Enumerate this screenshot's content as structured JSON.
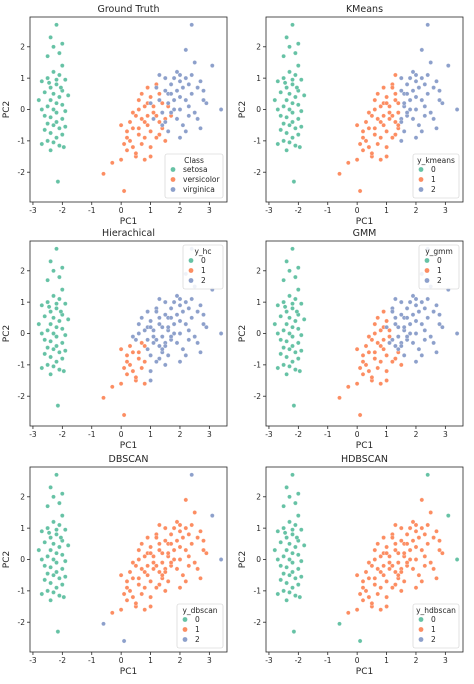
{
  "palette": {
    "0": "#66c2a5",
    "1": "#fc8d62",
    "2": "#8da0cb"
  },
  "chart_data": [
    {
      "type": "scatter",
      "title": "Ground Truth",
      "xlabel": "PC1",
      "ylabel": "PC2",
      "xlim": [
        -3.1,
        3.6
      ],
      "ylim": [
        -2.95,
        2.95
      ],
      "xticks": [
        "-3",
        "-2",
        "-1",
        "0",
        "1",
        "2",
        "3"
      ],
      "yticks": [
        "-2",
        "-1",
        "0",
        "1",
        "2"
      ],
      "legend": {
        "title": "Class",
        "position": "lower-right",
        "entries": [
          "setosa",
          "versicolor",
          "virginica"
        ]
      },
      "mode": "truth",
      "series": [
        {
          "name": "setosa"
        },
        {
          "name": "versicolor"
        },
        {
          "name": "virginica"
        }
      ]
    },
    {
      "type": "scatter",
      "title": "KMeans",
      "xlabel": "PC1",
      "ylabel": "PC2",
      "xlim": [
        -3.1,
        3.6
      ],
      "ylim": [
        -2.95,
        2.95
      ],
      "xticks": [
        "-3",
        "-2",
        "-1",
        "0",
        "1",
        "2",
        "3"
      ],
      "yticks": [
        "-2",
        "-1",
        "0",
        "1",
        "2"
      ],
      "legend": {
        "title": "y_kmeans",
        "position": "lower-right",
        "entries": [
          "0",
          "1",
          "2"
        ]
      },
      "mode": "kmeans",
      "series": [
        {
          "name": "0"
        },
        {
          "name": "1"
        },
        {
          "name": "2"
        }
      ]
    },
    {
      "type": "scatter",
      "title": "Hierachical",
      "xlabel": "PC1",
      "ylabel": "PC2",
      "xlim": [
        -3.1,
        3.6
      ],
      "ylim": [
        -2.95,
        2.95
      ],
      "xticks": [
        "-3",
        "-2",
        "-1",
        "0",
        "1",
        "2",
        "3"
      ],
      "yticks": [
        "-2",
        "-1",
        "0",
        "1",
        "2"
      ],
      "legend": {
        "title": "y_hc",
        "position": "upper-right",
        "entries": [
          "0",
          "1",
          "2"
        ]
      },
      "mode": "hier",
      "series": [
        {
          "name": "0"
        },
        {
          "name": "1"
        },
        {
          "name": "2"
        }
      ]
    },
    {
      "type": "scatter",
      "title": "GMM",
      "xlabel": "PC1",
      "ylabel": "PC2",
      "xlim": [
        -3.1,
        3.6
      ],
      "ylim": [
        -2.95,
        2.95
      ],
      "xticks": [
        "-3",
        "-2",
        "-1",
        "0",
        "1",
        "2",
        "3"
      ],
      "yticks": [
        "-2",
        "-1",
        "0",
        "1",
        "2"
      ],
      "legend": {
        "title": "y_gmm",
        "position": "upper-right",
        "entries": [
          "0",
          "1",
          "2"
        ]
      },
      "mode": "gmm",
      "series": [
        {
          "name": "0"
        },
        {
          "name": "1"
        },
        {
          "name": "2"
        }
      ]
    },
    {
      "type": "scatter",
      "title": "DBSCAN",
      "xlabel": "PC1",
      "ylabel": "PC2",
      "xlim": [
        -3.1,
        3.6
      ],
      "ylim": [
        -2.95,
        2.95
      ],
      "xticks": [
        "-3",
        "-2",
        "-1",
        "0",
        "1",
        "2",
        "3"
      ],
      "yticks": [
        "-2",
        "-1",
        "0",
        "1",
        "2"
      ],
      "legend": {
        "title": "y_dbscan",
        "position": "lower-right",
        "entries": [
          "0",
          "1",
          "2"
        ]
      },
      "mode": "dbscan",
      "series": [
        {
          "name": "0"
        },
        {
          "name": "1"
        },
        {
          "name": "2"
        }
      ]
    },
    {
      "type": "scatter",
      "title": "HDBSCAN",
      "xlabel": "PC1",
      "ylabel": "PC2",
      "xlim": [
        -3.1,
        3.6
      ],
      "ylim": [
        -2.95,
        2.95
      ],
      "xticks": [
        "-3",
        "-2",
        "-1",
        "0",
        "1",
        "2",
        "3"
      ],
      "yticks": [
        "-2",
        "-1",
        "0",
        "1",
        "2"
      ],
      "legend": {
        "title": "y_hdbscan",
        "position": "lower-right",
        "entries": [
          "0",
          "1",
          "2"
        ]
      },
      "mode": "hdbscan",
      "series": [
        {
          "name": "0"
        },
        {
          "name": "1"
        },
        {
          "name": "2"
        }
      ]
    }
  ],
  "points": {
    "setosa": [
      [
        -2.2,
        2.7
      ],
      [
        -2.4,
        2.3
      ],
      [
        -2.3,
        2.0
      ],
      [
        -2.0,
        2.1
      ],
      [
        -2.1,
        1.8
      ],
      [
        -2.5,
        1.7
      ],
      [
        -2.0,
        1.4
      ],
      [
        -2.3,
        1.2
      ],
      [
        -2.1,
        1.1
      ],
      [
        -2.5,
        1.0
      ],
      [
        -2.7,
        0.9
      ],
      [
        -1.9,
        0.95
      ],
      [
        -2.2,
        0.8
      ],
      [
        -2.4,
        0.7
      ],
      [
        -2.0,
        0.6
      ],
      [
        -2.6,
        0.55
      ],
      [
        -2.3,
        0.5
      ],
      [
        -1.8,
        0.45
      ],
      [
        -2.1,
        0.4
      ],
      [
        -2.8,
        0.3
      ],
      [
        -2.4,
        0.3
      ],
      [
        -2.2,
        0.2
      ],
      [
        -2.0,
        0.15
      ],
      [
        -2.5,
        0.1
      ],
      [
        -2.7,
        0.0
      ],
      [
        -2.3,
        0.0
      ],
      [
        -1.9,
        -0.05
      ],
      [
        -2.2,
        -0.1
      ],
      [
        -2.6,
        -0.2
      ],
      [
        -2.4,
        -0.25
      ],
      [
        -2.0,
        -0.3
      ],
      [
        -2.2,
        -0.4
      ],
      [
        -2.5,
        -0.45
      ],
      [
        -2.3,
        -0.5
      ],
      [
        -1.9,
        -0.55
      ],
      [
        -2.1,
        -0.6
      ],
      [
        -2.6,
        -0.65
      ],
      [
        -2.4,
        -0.75
      ],
      [
        -2.0,
        -0.8
      ],
      [
        -2.2,
        -0.9
      ],
      [
        -2.5,
        -1.0
      ],
      [
        -2.3,
        -1.05
      ],
      [
        -2.7,
        -1.1
      ],
      [
        -2.1,
        -1.15
      ],
      [
        -1.95,
        -1.2
      ],
      [
        -2.4,
        -1.3
      ],
      [
        -2.2,
        0.95
      ],
      [
        -2.45,
        0.85
      ],
      [
        -2.05,
        0.7
      ],
      [
        -2.15,
        -2.3
      ]
    ],
    "versicolor": [
      [
        0.1,
        -2.6
      ],
      [
        -0.6,
        -2.05
      ],
      [
        -0.3,
        -1.7
      ],
      [
        0.0,
        -1.6
      ],
      [
        0.2,
        -1.3
      ],
      [
        0.5,
        -1.5
      ],
      [
        0.3,
        -1.0
      ],
      [
        0.8,
        -1.6
      ],
      [
        1.0,
        -1.2
      ],
      [
        0.6,
        -0.8
      ],
      [
        0.4,
        -0.6
      ],
      [
        0.9,
        -0.5
      ],
      [
        1.2,
        -0.9
      ],
      [
        0.7,
        -0.3
      ],
      [
        1.5,
        -1.0
      ],
      [
        0.0,
        -0.5
      ],
      [
        0.5,
        -0.2
      ],
      [
        1.3,
        -0.4
      ],
      [
        0.2,
        -0.9
      ],
      [
        1.1,
        -0.1
      ],
      [
        0.8,
        0.1
      ],
      [
        1.4,
        0.2
      ],
      [
        0.6,
        0.3
      ],
      [
        1.0,
        0.4
      ],
      [
        1.3,
        0.5
      ],
      [
        1.6,
        0.1
      ],
      [
        0.9,
        0.7
      ],
      [
        1.2,
        0.8
      ],
      [
        0.4,
        -1.2
      ],
      [
        0.1,
        -1.1
      ],
      [
        0.7,
        -1.1
      ],
      [
        1.0,
        -0.7
      ],
      [
        0.3,
        -0.4
      ],
      [
        0.6,
        -0.6
      ],
      [
        1.5,
        -0.3
      ],
      [
        0.8,
        -0.9
      ],
      [
        1.1,
        0.1
      ],
      [
        0.5,
        -1.4
      ],
      [
        0.9,
        -0.2
      ],
      [
        1.7,
        -0.2
      ],
      [
        0.2,
        -0.7
      ],
      [
        1.4,
        -0.6
      ],
      [
        0.7,
        0.5
      ],
      [
        1.2,
        -0.2
      ],
      [
        0.9,
        0.2
      ],
      [
        1.0,
        -1.5
      ],
      [
        0.4,
        -0.1
      ],
      [
        1.3,
        -0.8
      ],
      [
        0.6,
        0.0
      ],
      [
        0.8,
        -0.4
      ]
    ],
    "virginica": [
      [
        2.4,
        2.7
      ],
      [
        2.2,
        1.9
      ],
      [
        2.5,
        1.5
      ],
      [
        3.1,
        1.4
      ],
      [
        2.0,
        1.1
      ],
      [
        1.8,
        1.0
      ],
      [
        1.5,
        1.0
      ],
      [
        2.3,
        0.8
      ],
      [
        2.6,
        0.7
      ],
      [
        1.2,
        0.7
      ],
      [
        1.6,
        0.5
      ],
      [
        2.0,
        0.4
      ],
      [
        2.8,
        0.3
      ],
      [
        3.4,
        0.0
      ],
      [
        1.4,
        -0.1
      ],
      [
        1.8,
        0.0
      ],
      [
        2.2,
        0.3
      ],
      [
        1.9,
        0.6
      ],
      [
        2.4,
        0.5
      ],
      [
        1.3,
        1.1
      ],
      [
        1.7,
        0.8
      ],
      [
        2.1,
        0.7
      ],
      [
        2.7,
        0.9
      ],
      [
        2.9,
        0.2
      ],
      [
        1.5,
        -0.4
      ],
      [
        1.9,
        -0.3
      ],
      [
        2.3,
        -0.2
      ],
      [
        1.6,
        -0.7
      ],
      [
        2.0,
        -0.9
      ],
      [
        1.4,
        -0.5
      ],
      [
        2.5,
        -0.1
      ],
      [
        1.7,
        -0.1
      ],
      [
        2.2,
        1.0
      ],
      [
        1.8,
        0.3
      ],
      [
        2.6,
        -0.3
      ],
      [
        1.1,
        -0.3
      ],
      [
        2.0,
        0.0
      ],
      [
        2.4,
        1.1
      ],
      [
        1.5,
        0.6
      ],
      [
        1.9,
        1.2
      ],
      [
        2.1,
        -0.5
      ],
      [
        2.7,
        -0.6
      ],
      [
        1.3,
        0.3
      ],
      [
        2.3,
        0.1
      ],
      [
        1.6,
        0.2
      ],
      [
        2.8,
        0.6
      ],
      [
        2.2,
        -0.7
      ],
      [
        1.7,
        0.5
      ],
      [
        2.0,
        0.9
      ],
      [
        1.0,
        0.2
      ]
    ]
  }
}
